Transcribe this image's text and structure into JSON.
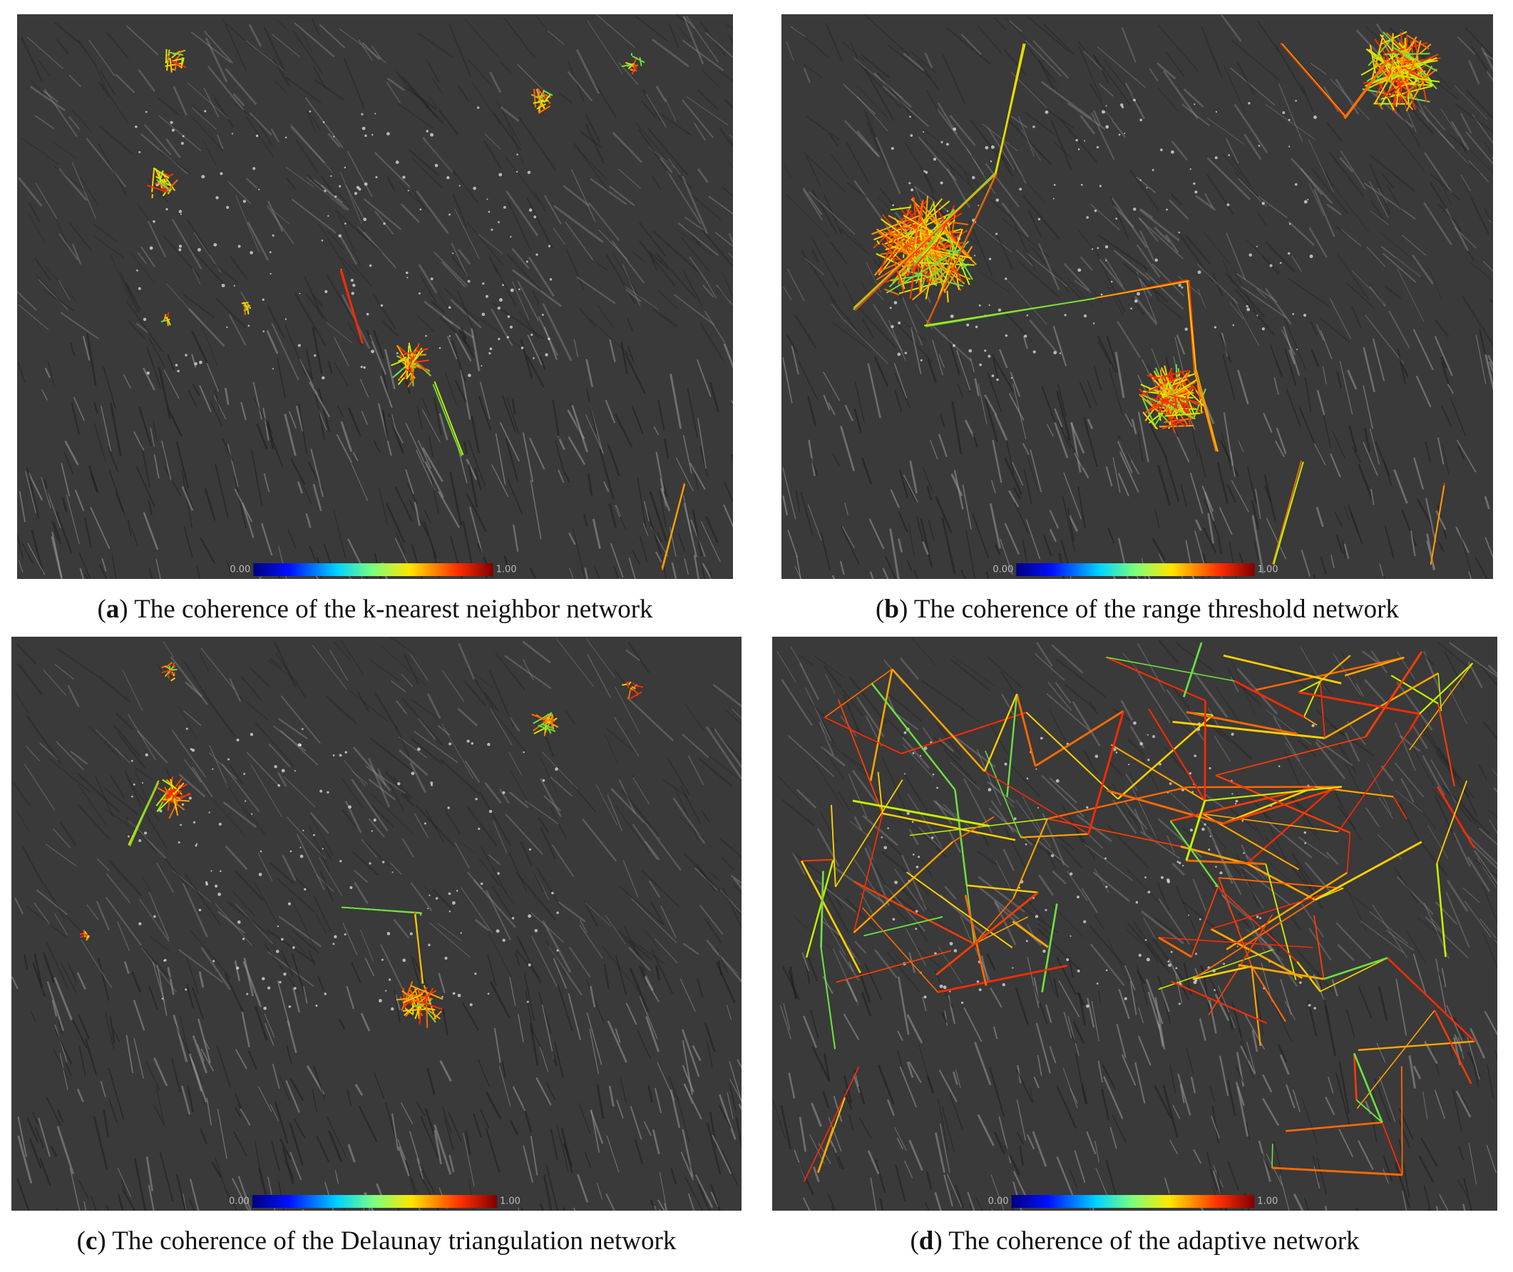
{
  "panels": [
    {
      "label": "a",
      "caption": "The coherence of the k-nearest neighbor network",
      "colorbar": {
        "min_label": "0.00",
        "max_label": "1.00"
      }
    },
    {
      "label": "b",
      "caption": "The coherence of the range threshold network",
      "colorbar": {
        "min_label": "0.00",
        "max_label": "1.00"
      }
    },
    {
      "label": "c",
      "caption": "The coherence of the Delaunay triangulation network",
      "colorbar": {
        "min_label": "0.00",
        "max_label": "1.00"
      }
    },
    {
      "label": "d",
      "caption": "The coherence of the adaptive network",
      "colorbar": {
        "min_label": "0.00",
        "max_label": "1.00"
      }
    }
  ]
}
